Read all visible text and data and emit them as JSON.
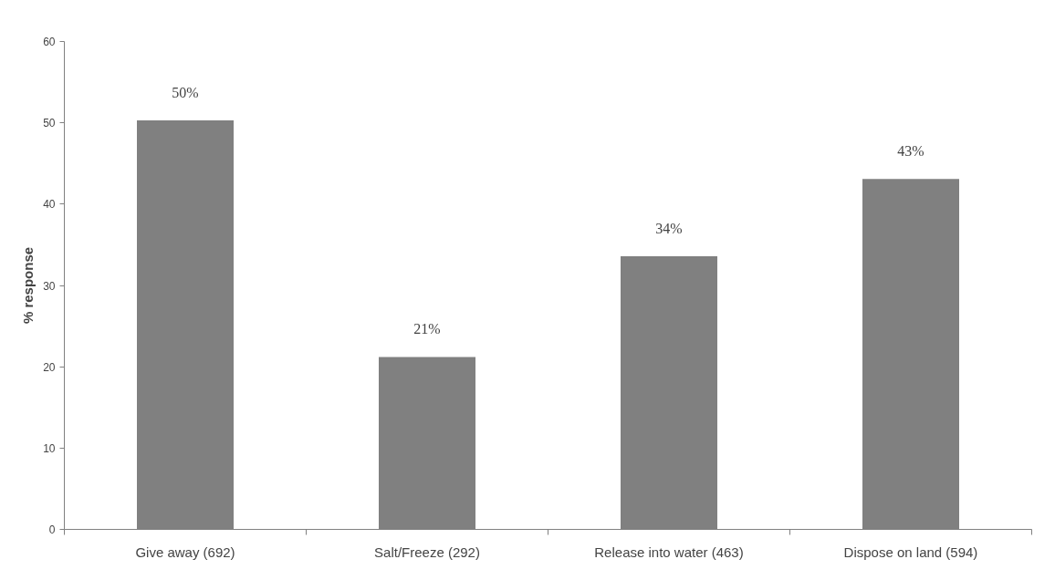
{
  "chart_data": {
    "type": "bar",
    "ylabel": "% response",
    "categories": [
      "Give away (692)",
      "Salt/Freeze (292)",
      "Release into water (463)",
      "Dispose on land (594)"
    ],
    "values": [
      50.3,
      21.2,
      33.6,
      43.1
    ],
    "value_labels": [
      "50%",
      "21%",
      "34%",
      "43%"
    ],
    "color": "#808080",
    "ylim": [
      0,
      60
    ],
    "yticks": [
      0,
      10,
      20,
      30,
      40,
      50,
      60
    ],
    "grid": false
  }
}
